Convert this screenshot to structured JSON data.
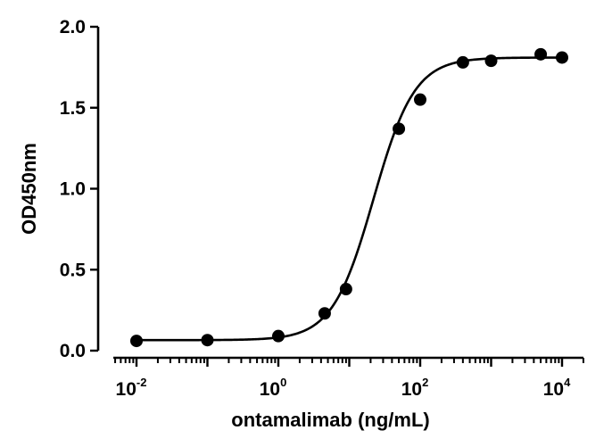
{
  "chart_data": {
    "type": "scatter",
    "title": "",
    "xlabel": "ontamalimab (ng/mL)",
    "ylabel": "OD450nm",
    "x_scale": "log",
    "xlim": [
      0.005,
      20000
    ],
    "ylim": [
      0,
      2.0
    ],
    "grid": false,
    "y_ticks": [
      "0.0",
      "0.5",
      "1.0",
      "1.5",
      "2.0"
    ],
    "x_ticks": [
      {
        "base": "10",
        "exp": "-2",
        "value": 0.01
      },
      {
        "base": "10",
        "exp": "0",
        "value": 1
      },
      {
        "base": "10",
        "exp": "2",
        "value": 100
      },
      {
        "base": "10",
        "exp": "4",
        "value": 10000
      }
    ],
    "points": [
      {
        "x": 0.01,
        "y": 0.06
      },
      {
        "x": 0.1,
        "y": 0.065
      },
      {
        "x": 1,
        "y": 0.09
      },
      {
        "x": 4.5,
        "y": 0.23
      },
      {
        "x": 9,
        "y": 0.38
      },
      {
        "x": 50,
        "y": 1.37
      },
      {
        "x": 100,
        "y": 1.55
      },
      {
        "x": 400,
        "y": 1.78
      },
      {
        "x": 1000,
        "y": 1.79
      },
      {
        "x": 5000,
        "y": 1.83
      },
      {
        "x": 10000,
        "y": 1.81
      }
    ],
    "fit": {
      "model": "4PL",
      "bottom": 0.065,
      "top": 1.81,
      "ec50": 22,
      "hill": 1.5
    }
  }
}
